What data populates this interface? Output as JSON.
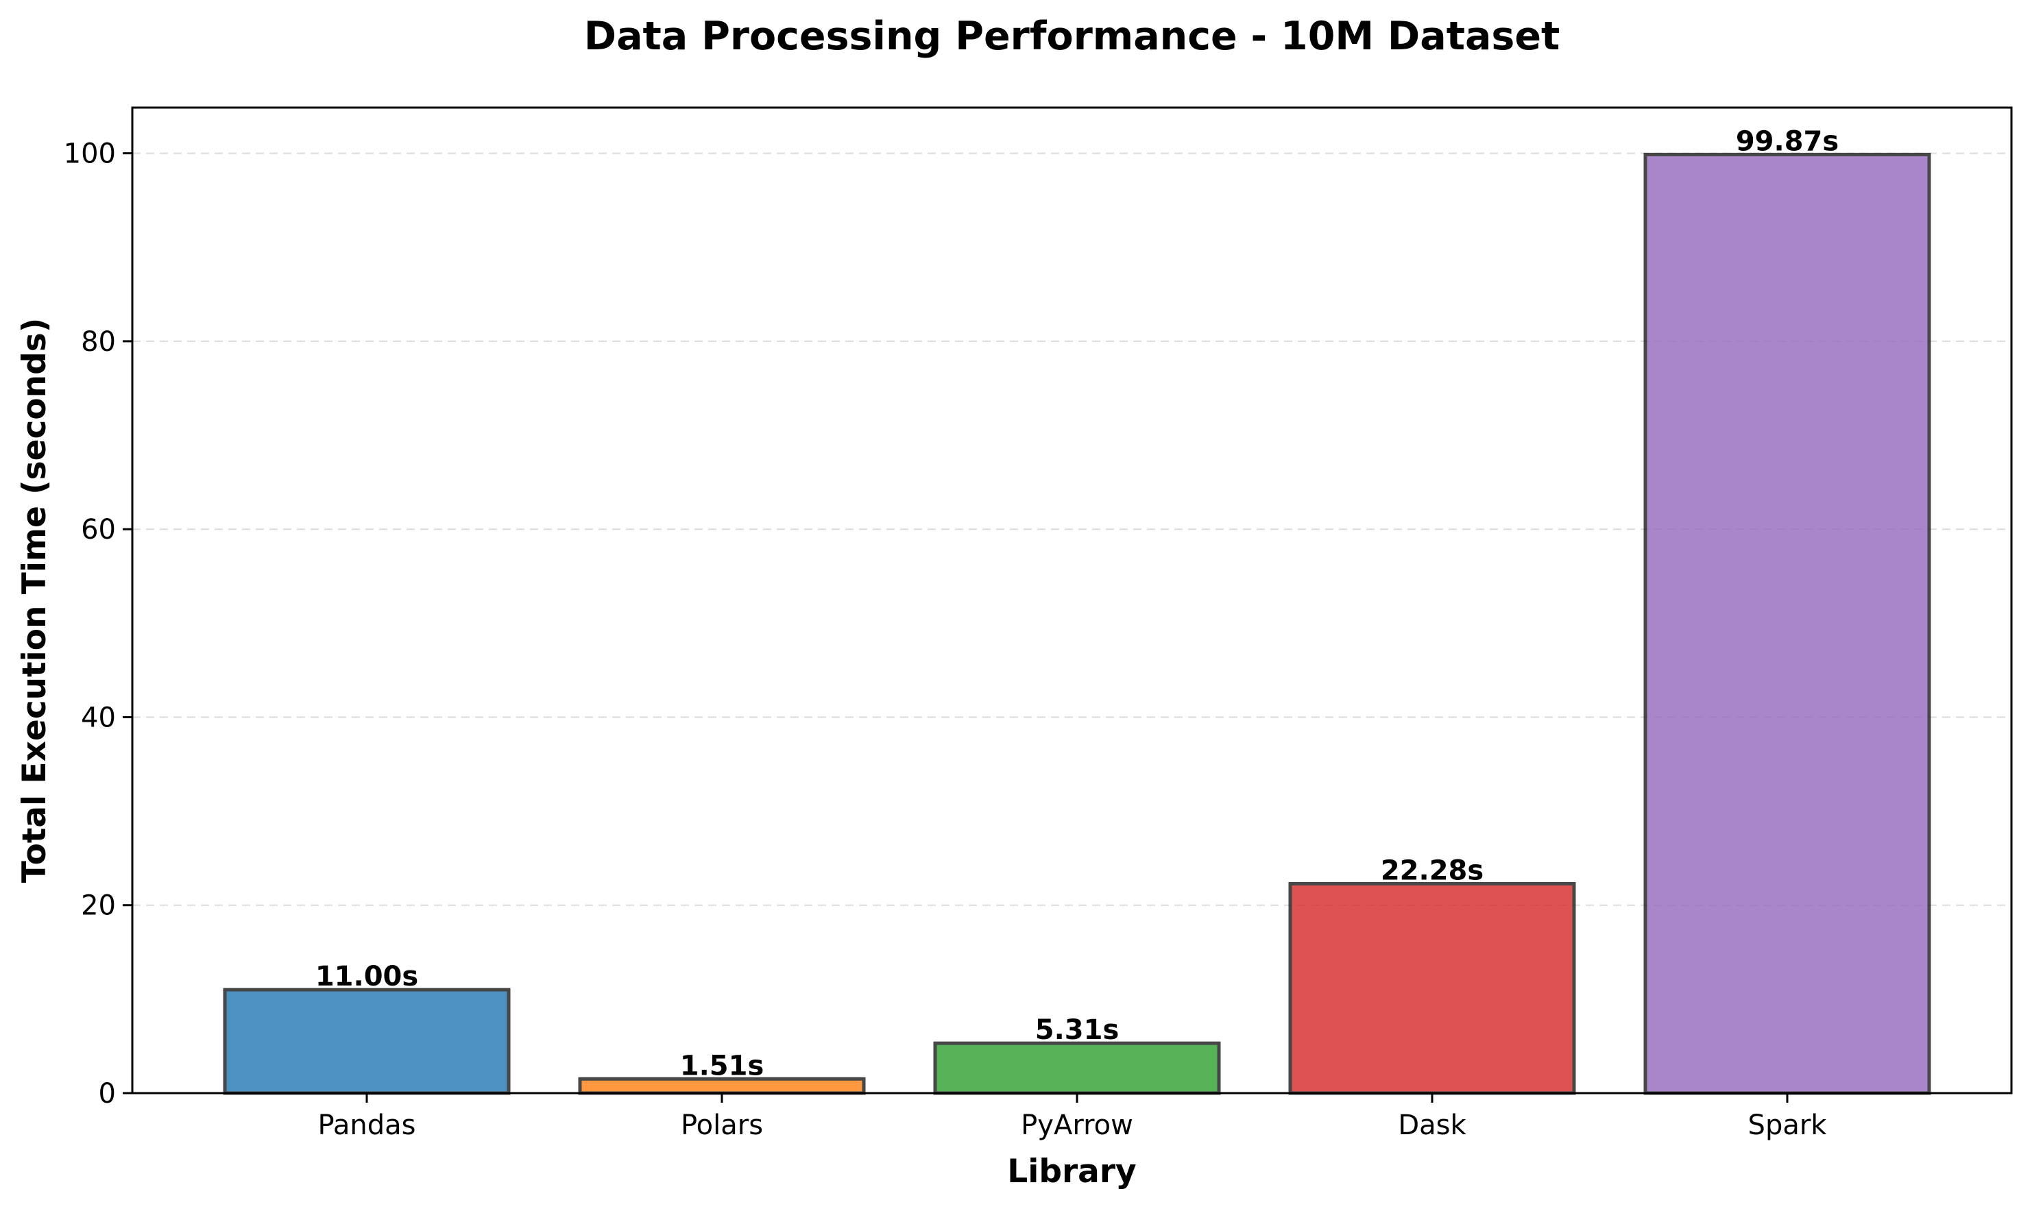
{
  "chart_data": {
    "type": "bar",
    "title": "Data Processing Performance - 10M Dataset",
    "xlabel": "Library",
    "ylabel": "Total Execution Time (seconds)",
    "categories": [
      "Pandas",
      "Polars",
      "PyArrow",
      "Dask",
      "Spark"
    ],
    "values": [
      11.0,
      1.51,
      5.31,
      22.28,
      99.87
    ],
    "value_labels": [
      "11.00s",
      "1.51s",
      "5.31s",
      "22.28s",
      "99.87s"
    ],
    "colors": [
      "#1f77b4",
      "#ff7f0e",
      "#2ca02c",
      "#d62728",
      "#9467bd"
    ],
    "ylim": [
      0,
      104.86
    ],
    "yticks": [
      0,
      20,
      40,
      60,
      80,
      100
    ],
    "grid": "y-dashed",
    "legend": "none"
  }
}
